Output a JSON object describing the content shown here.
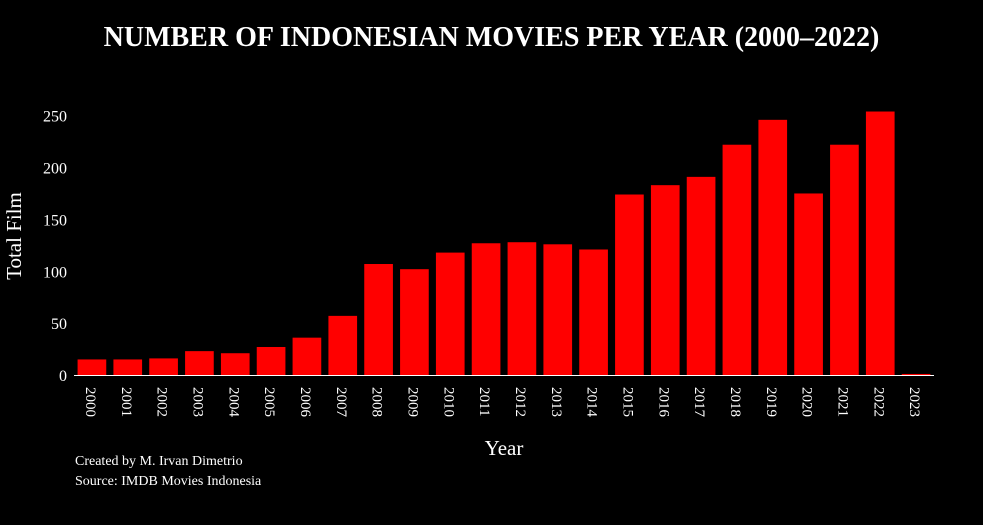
{
  "chart_data": {
    "type": "bar",
    "title": "NUMBER OF INDONESIAN MOVIES PER YEAR (2000–2022)",
    "xlabel": "Year",
    "ylabel": "Total Film",
    "categories": [
      "2000",
      "2001",
      "2002",
      "2003",
      "2004",
      "2005",
      "2006",
      "2007",
      "2008",
      "2009",
      "2010",
      "2011",
      "2012",
      "2013",
      "2014",
      "2015",
      "2016",
      "2017",
      "2018",
      "2019",
      "2020",
      "2021",
      "2022",
      "2023"
    ],
    "values": [
      15,
      15,
      16,
      23,
      21,
      27,
      36,
      57,
      107,
      102,
      118,
      127,
      128,
      126,
      121,
      174,
      183,
      191,
      222,
      246,
      175,
      222,
      254,
      1
    ],
    "yticks": [
      0,
      50,
      100,
      150,
      200,
      250
    ],
    "ylim": [
      0,
      268
    ],
    "bar_color": "#ff0000",
    "background": "#000000",
    "grid": false
  },
  "footer": {
    "credit": "Created by M. Irvan Dimetrio",
    "source": "Source: IMDB Movies Indonesia"
  }
}
